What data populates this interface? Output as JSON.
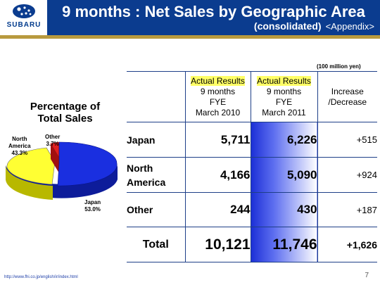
{
  "header": {
    "logo_text": "SUBARU",
    "title": "9 months : Net Sales by Geographic Area",
    "subtitle": "(consolidated)",
    "appendix": "<Appendix>"
  },
  "colors": {
    "header_band": "#0b3c8f",
    "gold_rule": "#b89a3e",
    "japan": "#1a2fe0",
    "north_america": "#ffff33",
    "other": "#e02020",
    "highlight": "#ffff66"
  },
  "pie": {
    "title_line1": "Percentage of",
    "title_line2": "Total Sales",
    "labels": {
      "north_america_line1": "North",
      "north_america_line2": "America",
      "north_america_pct": "43.3%",
      "other_name": "Other",
      "other_pct": "3.7%",
      "japan_name": "Japan",
      "japan_pct": "53.0%"
    }
  },
  "chart_data": {
    "type": "pie",
    "title": "Percentage of Total Sales",
    "slices": [
      {
        "name": "Japan",
        "value": 53.0
      },
      {
        "name": "North America",
        "value": 43.3
      },
      {
        "name": "Other",
        "value": 3.7
      }
    ]
  },
  "table": {
    "unit_note": "(100 million yen)",
    "headers": {
      "col2_line1": "Actual Results",
      "col2_line2": "9 months",
      "col2_line3": "FYE",
      "col2_line4": "March 2010",
      "col3_line1": "Actual Results",
      "col3_line2": "9 months",
      "col3_line3": "FYE",
      "col3_line4": "March 2011",
      "col4_line1": "Increase",
      "col4_line2": "/Decrease"
    },
    "rows": [
      {
        "label_line1": "Japan",
        "label_line2": "",
        "fy2010": "5,711",
        "fy2011": "6,226",
        "change": "+515"
      },
      {
        "label_line1": "North",
        "label_line2": "America",
        "fy2010": "4,166",
        "fy2011": "5,090",
        "change": "+924"
      },
      {
        "label_line1": "Other",
        "label_line2": "",
        "fy2010": "244",
        "fy2011": "430",
        "change": "+187"
      }
    ],
    "total": {
      "label": "Total",
      "fy2010": "10,121",
      "fy2011": "11,746",
      "change": "+1,626"
    }
  },
  "footer": {
    "url": "http://www.fhi.co.jp/english/ir/index.html",
    "page": "7"
  }
}
